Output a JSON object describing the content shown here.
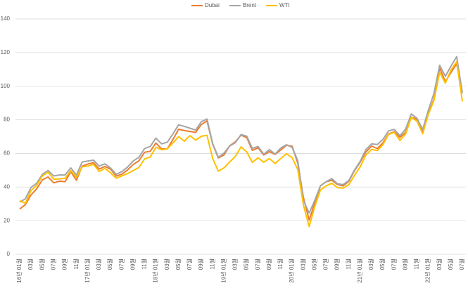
{
  "chart_data": {
    "type": "line",
    "categories": [
      "16년 01월",
      null,
      "03월",
      null,
      "05월",
      null,
      "07월",
      null,
      "09월",
      null,
      "11월",
      null,
      "17년 01월",
      null,
      "03월",
      null,
      "05월",
      null,
      "07월",
      null,
      "09월",
      null,
      "11월",
      null,
      "18년 01월",
      null,
      "03월",
      null,
      "05월",
      null,
      "07월",
      null,
      "09월",
      null,
      "11월",
      null,
      "19년 01월",
      null,
      "03월",
      null,
      "05월",
      null,
      "07월",
      null,
      "09월",
      null,
      "11월",
      null,
      "20년 01월",
      null,
      "03월",
      null,
      "05월",
      null,
      "07월",
      null,
      "09월",
      null,
      "11월",
      null,
      "21년 01월",
      null,
      "03월",
      null,
      "05월",
      null,
      "07월",
      null,
      "09월",
      null,
      "11월",
      null,
      "22년 01월",
      null,
      "03월",
      null,
      "05월",
      null,
      "07월"
    ],
    "series": [
      {
        "name": "Dubai",
        "color": "#ED7D31",
        "values": [
          26.9,
          29.6,
          35.3,
          39.0,
          44.3,
          46.0,
          42.5,
          43.5,
          43.2,
          49.1,
          44.0,
          52.4,
          53.7,
          54.5,
          50.7,
          52.2,
          50.7,
          46.5,
          47.6,
          50.2,
          53.4,
          55.6,
          60.7,
          61.3,
          66.2,
          62.7,
          62.7,
          68.3,
          74.4,
          73.6,
          73.1,
          72.5,
          77.2,
          79.4,
          65.6,
          57.3,
          59.1,
          64.6,
          66.9,
          70.9,
          69.4,
          61.8,
          63.3,
          59.1,
          61.1,
          59.4,
          62.0,
          64.9,
          64.3,
          54.2,
          33.7,
          20.4,
          30.5,
          40.8,
          43.2,
          44.0,
          41.5,
          40.7,
          43.4,
          49.8,
          54.8,
          60.9,
          64.4,
          62.9,
          66.3,
          71.6,
          72.9,
          69.5,
          72.6,
          81.6,
          80.3,
          73.2,
          83.5,
          92.3,
          110.9,
          102.7,
          108.2,
          113.3,
          96
        ]
      },
      {
        "name": "Brent",
        "color": "#A5A5A5",
        "values": [
          31,
          33,
          39.8,
          42.3,
          47.6,
          49.9,
          46.6,
          47.2,
          47.2,
          51.4,
          47.1,
          54.9,
          55.5,
          56.0,
          52.5,
          53.8,
          51.4,
          47.5,
          49.2,
          51.9,
          55.5,
          57.7,
          62.9,
          64.2,
          69.1,
          65.7,
          66.7,
          71.6,
          77.0,
          76.1,
          75.0,
          73.9,
          78.9,
          80.5,
          65.9,
          57.7,
          60.2,
          64.4,
          66.4,
          71.2,
          70.3,
          63.0,
          64.2,
          59.5,
          62.3,
          59.6,
          63.2,
          65.2,
          63.6,
          55.7,
          32.0,
          24.5,
          32.1,
          40.8,
          43.2,
          45.0,
          41.9,
          41.5,
          43.9,
          50.2,
          55.3,
          62.3,
          65.7,
          65.3,
          68.3,
          73.4,
          74.3,
          70.5,
          74.5,
          83.5,
          80.9,
          74.2,
          85.6,
          95.8,
          112.5,
          105.9,
          112.0,
          117.6,
          96
        ]
      },
      {
        "name": "WTI",
        "color": "#FFC000",
        "values": [
          31.8,
          30.4,
          37.9,
          41.1,
          46.7,
          48.8,
          44.7,
          44.8,
          45.2,
          49.8,
          45.7,
          52.0,
          52.5,
          53.5,
          49.3,
          51.1,
          48.5,
          45.2,
          46.6,
          48.0,
          49.8,
          51.6,
          56.7,
          57.9,
          63.7,
          62.2,
          62.7,
          66.3,
          70.0,
          67.3,
          70.6,
          67.9,
          70.2,
          70.8,
          57.0,
          49.5,
          51.4,
          54.9,
          58.2,
          63.9,
          60.9,
          54.7,
          57.4,
          54.8,
          57.0,
          54.0,
          57.0,
          59.8,
          57.5,
          50.5,
          29.2,
          16.5,
          28.5,
          38.3,
          40.7,
          42.3,
          39.6,
          39.4,
          41.4,
          47.0,
          52.0,
          59.1,
          62.4,
          61.7,
          65.2,
          71.4,
          72.5,
          67.7,
          71.6,
          81.5,
          79.2,
          71.7,
          83.2,
          91.6,
          108.3,
          101.8,
          109.6,
          114.6,
          91
        ]
      }
    ],
    "ylim": [
      0,
      140
    ],
    "yticks": [
      0,
      20,
      40,
      60,
      80,
      100,
      120,
      140
    ],
    "grid": true,
    "legend": "top"
  }
}
